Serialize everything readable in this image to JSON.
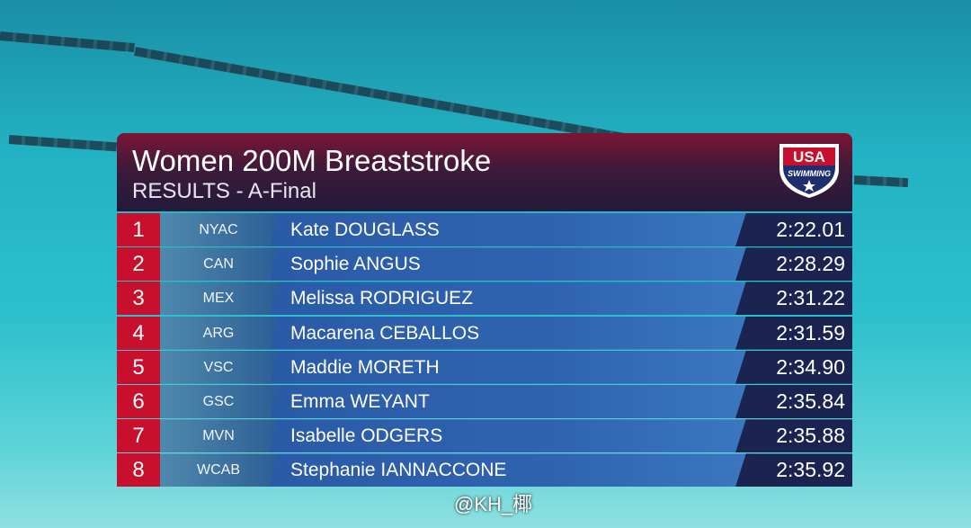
{
  "header": {
    "title": "Women 200M Breaststroke",
    "subtitle": "RESULTS - A-Final"
  },
  "logo": {
    "top": "USA",
    "bottom": "SWIMMING"
  },
  "results": [
    {
      "rank": 1,
      "club": "NYAC",
      "name": "Kate DOUGLASS",
      "time": "2:22.01"
    },
    {
      "rank": 2,
      "club": "CAN",
      "name": "Sophie ANGUS",
      "time": "2:28.29"
    },
    {
      "rank": 3,
      "club": "MEX",
      "name": "Melissa RODRIGUEZ",
      "time": "2:31.22"
    },
    {
      "rank": 4,
      "club": "ARG",
      "name": "Macarena CEBALLOS",
      "time": "2:31.59"
    },
    {
      "rank": 5,
      "club": "VSC",
      "name": "Maddie MORETH",
      "time": "2:34.90"
    },
    {
      "rank": 6,
      "club": "GSC",
      "name": "Emma WEYANT",
      "time": "2:35.84"
    },
    {
      "rank": 7,
      "club": "MVN",
      "name": "Isabelle ODGERS",
      "time": "2:35.88"
    },
    {
      "rank": 8,
      "club": "WCAB",
      "name": "Stephanie IANNACCONE",
      "time": "2:35.92"
    }
  ],
  "watermark": "@KH_椰"
}
